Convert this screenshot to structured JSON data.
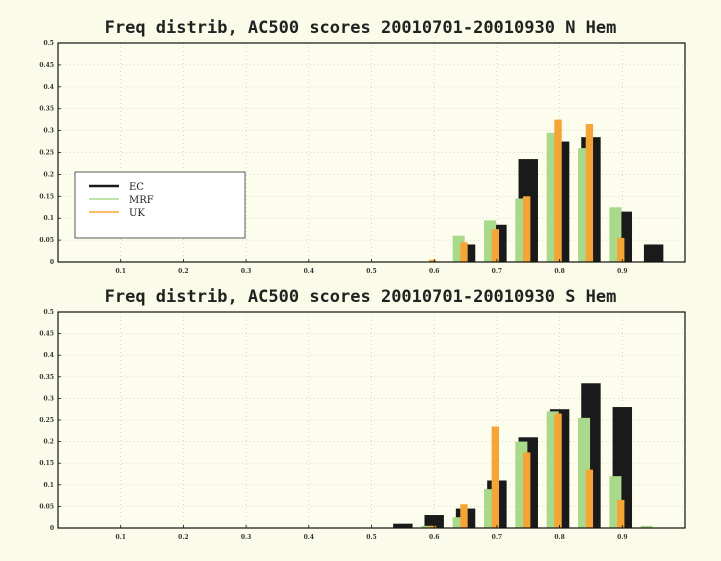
{
  "chart_data": [
    {
      "type": "bar",
      "title": "Freq distrib, AC500 scores 20010701-20010930 N Hem",
      "xlabel": "",
      "ylabel": "",
      "ylim": [
        0,
        0.5
      ],
      "xlim": [
        0,
        1.0
      ],
      "x_ticks": [
        "0.1",
        "0.2",
        "0.3",
        "0.4",
        "0.5",
        "0.6",
        "0.7",
        "0.8",
        "0.9"
      ],
      "y_ticks": [
        "0",
        "0.05",
        "0.1",
        "0.15",
        "0.2",
        "0.25",
        "0.3",
        "0.35",
        "0.4",
        "0.45",
        "0.5"
      ],
      "grid": true,
      "legend_position": "left",
      "bin_centers": [
        0.5,
        0.55,
        0.6,
        0.65,
        0.7,
        0.75,
        0.8,
        0.85,
        0.9,
        0.95
      ],
      "series": [
        {
          "name": "EC",
          "color": "#1a1a1a",
          "values": [
            0,
            0,
            0,
            0.04,
            0.085,
            0.235,
            0.275,
            0.285,
            0.115,
            0.04
          ]
        },
        {
          "name": "MRF",
          "color": "#a9d98a",
          "values": [
            0,
            0,
            0,
            0.06,
            0.095,
            0.145,
            0.295,
            0.26,
            0.125,
            0
          ]
        },
        {
          "name": "UK",
          "color": "#f5a535",
          "values": [
            0,
            0,
            0.005,
            0.045,
            0.075,
            0.15,
            0.325,
            0.315,
            0.055,
            0
          ]
        }
      ]
    },
    {
      "type": "bar",
      "title": "Freq distrib, AC500 scores 20010701-20010930 S Hem",
      "xlabel": "",
      "ylabel": "",
      "ylim": [
        0,
        0.5
      ],
      "xlim": [
        0,
        1.0
      ],
      "x_ticks": [
        "0.1",
        "0.2",
        "0.3",
        "0.4",
        "0.5",
        "0.6",
        "0.7",
        "0.8",
        "0.9"
      ],
      "y_ticks": [
        "0",
        "0.05",
        "0.1",
        "0.15",
        "0.2",
        "0.25",
        "0.3",
        "0.35",
        "0.4",
        "0.45",
        "0.5"
      ],
      "grid": true,
      "bin_centers": [
        0.5,
        0.55,
        0.6,
        0.65,
        0.7,
        0.75,
        0.8,
        0.85,
        0.9,
        0.95
      ],
      "series": [
        {
          "name": "EC",
          "color": "#1a1a1a",
          "values": [
            0,
            0.01,
            0.03,
            0.045,
            0.11,
            0.21,
            0.275,
            0.335,
            0.28,
            0
          ]
        },
        {
          "name": "MRF",
          "color": "#a9d98a",
          "values": [
            0,
            0,
            0.005,
            0.025,
            0.09,
            0.2,
            0.27,
            0.255,
            0.12,
            0.005
          ]
        },
        {
          "name": "UK",
          "color": "#f5a535",
          "values": [
            0,
            0,
            0.005,
            0.055,
            0.235,
            0.175,
            0.265,
            0.135,
            0.065,
            0
          ]
        }
      ]
    }
  ]
}
